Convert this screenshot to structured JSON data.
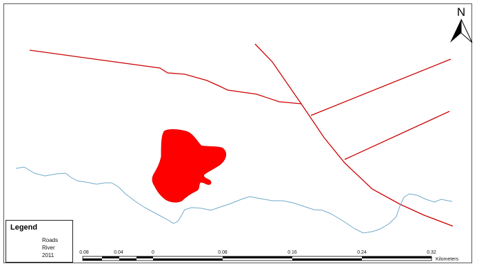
{
  "north_arrow": {
    "letter": "N"
  },
  "legend": {
    "title": "Legend",
    "items": [
      {
        "label": "Roads",
        "type": "line",
        "color": "#cc0000"
      },
      {
        "label": "River",
        "type": "line",
        "color": "#6fa9c9"
      },
      {
        "label": "2011",
        "type": "fill",
        "color": "#ff0000"
      }
    ]
  },
  "scale_bar": {
    "unit": "Kilometers",
    "ticks": [
      "0.08",
      "0.04",
      "0",
      "0.08",
      "0.16",
      "0.24",
      "0.32"
    ]
  },
  "colors": {
    "roads": "#cc0000",
    "river": "#6fa9c9",
    "area_2011": "#ff0000",
    "frame": "#555555"
  }
}
